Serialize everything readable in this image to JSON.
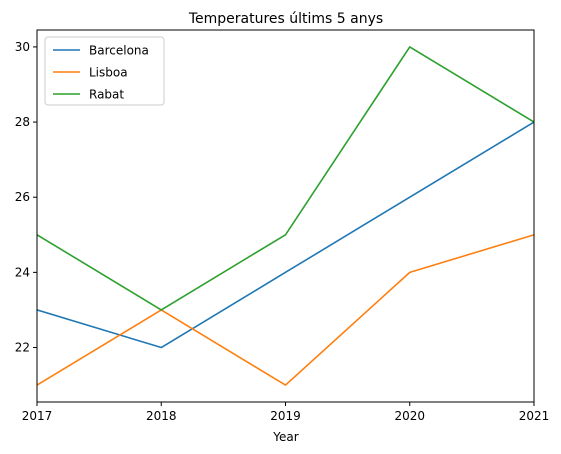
{
  "chart_data": {
    "type": "line",
    "title": "Temperatures últims 5 anys",
    "xlabel": "Year",
    "ylabel": "",
    "x": [
      2017,
      2018,
      2019,
      2020,
      2021
    ],
    "xlim": [
      2017,
      2021
    ],
    "ylim": [
      20.55,
      30.45
    ],
    "xticks": [
      "2017",
      "2018",
      "2019",
      "2020",
      "2021"
    ],
    "yticks": [
      22,
      24,
      26,
      28,
      30
    ],
    "ytick_labels": [
      "22",
      "24",
      "26",
      "28",
      "30"
    ],
    "grid": false,
    "legend_position": "top-left",
    "series": [
      {
        "name": "Barcelona",
        "color": "#1f77b4",
        "values": [
          23,
          22,
          24,
          26,
          28
        ]
      },
      {
        "name": "Lisboa",
        "color": "#ff7f0e",
        "values": [
          21,
          23,
          21,
          24,
          25
        ]
      },
      {
        "name": "Rabat",
        "color": "#2ca02c",
        "values": [
          25,
          23,
          25,
          30,
          28
        ]
      }
    ]
  }
}
